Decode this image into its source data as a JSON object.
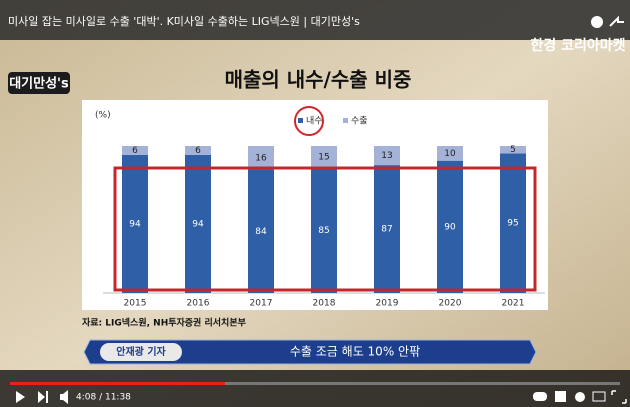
{
  "video": {
    "title": "미사일 잡는 미사일로 수출 '대박'. K미사일 수출하는 LIG넥스원 | 대기만성's",
    "channel_logo": "대기만성's",
    "brand": "한경 코리아마켓",
    "time": "4:08 / 11:38"
  },
  "chart_data": {
    "type": "stacked_bar",
    "title": "매출의 내수/수출 비중",
    "unit_label": "(%)",
    "categories": [
      "2015",
      "2016",
      "2017",
      "2018",
      "2019",
      "2020",
      "2021"
    ],
    "series": [
      {
        "name": "내수",
        "color": "#2f5fa7",
        "values": [
          94,
          94,
          84,
          85,
          87,
          90,
          95
        ]
      },
      {
        "name": "수출",
        "color": "#a4b2d8",
        "values": [
          6,
          6,
          16,
          15,
          13,
          10,
          5
        ]
      }
    ],
    "ylim": [
      0,
      100
    ],
    "source": "자료: LIG넥스원, NH투자증권 리서치본부"
  },
  "caption": {
    "reporter": "안재광 기자",
    "text": "수출 조금 해도 10% 안팎"
  }
}
